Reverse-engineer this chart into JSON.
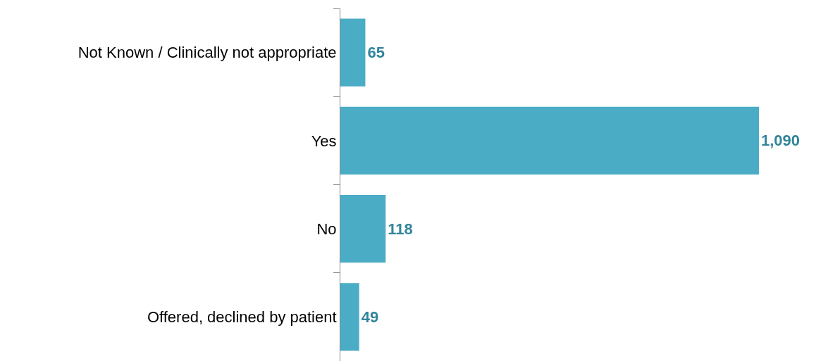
{
  "chart_data": {
    "type": "bar",
    "orientation": "horizontal",
    "categories": [
      "Not Known / Clinically not appropriate",
      "Yes",
      "No",
      "Offered, declined by patient"
    ],
    "values": [
      65,
      1090,
      118,
      49
    ],
    "color": "#4bacc6",
    "value_labels": [
      "65",
      "1,090",
      "118",
      "49"
    ]
  }
}
